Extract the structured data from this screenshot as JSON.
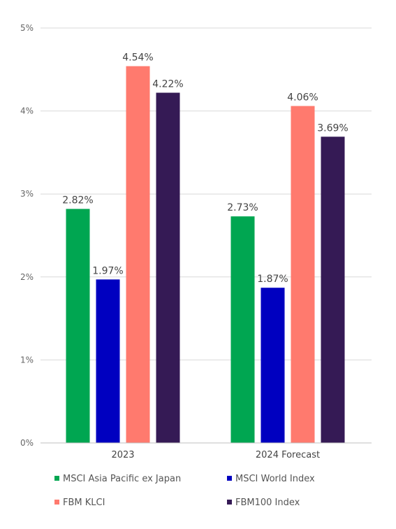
{
  "chart_data": {
    "type": "bar",
    "title": "",
    "xlabel": "",
    "ylabel": "",
    "categories": [
      "2023",
      "2024 Forecast"
    ],
    "series": [
      {
        "name": "MSCI Asia Pacific ex Japan",
        "color": "#00A651",
        "values": [
          2.82,
          2.73
        ],
        "labels": [
          "2.82%",
          "2.73%"
        ]
      },
      {
        "name": "MSCI World Index",
        "color": "#0000C0",
        "values": [
          1.97,
          1.87
        ],
        "labels": [
          "1.97%",
          "1.87%"
        ]
      },
      {
        "name": "FBM KLCI",
        "color": "#FF7A6E",
        "values": [
          4.54,
          4.06
        ],
        "labels": [
          "4.54%",
          "4.06%"
        ]
      },
      {
        "name": "FBM100 Index",
        "color": "#351A55",
        "values": [
          4.22,
          3.69
        ],
        "labels": [
          "4.22%",
          "3.69%"
        ]
      }
    ],
    "ylim": [
      0,
      5
    ],
    "y_ticks": [
      0,
      1,
      2,
      3,
      4,
      5
    ],
    "y_tick_labels": [
      "0%",
      "1%",
      "2%",
      "3%",
      "4%",
      "5%"
    ],
    "grid": true,
    "legend_position": "bottom"
  }
}
